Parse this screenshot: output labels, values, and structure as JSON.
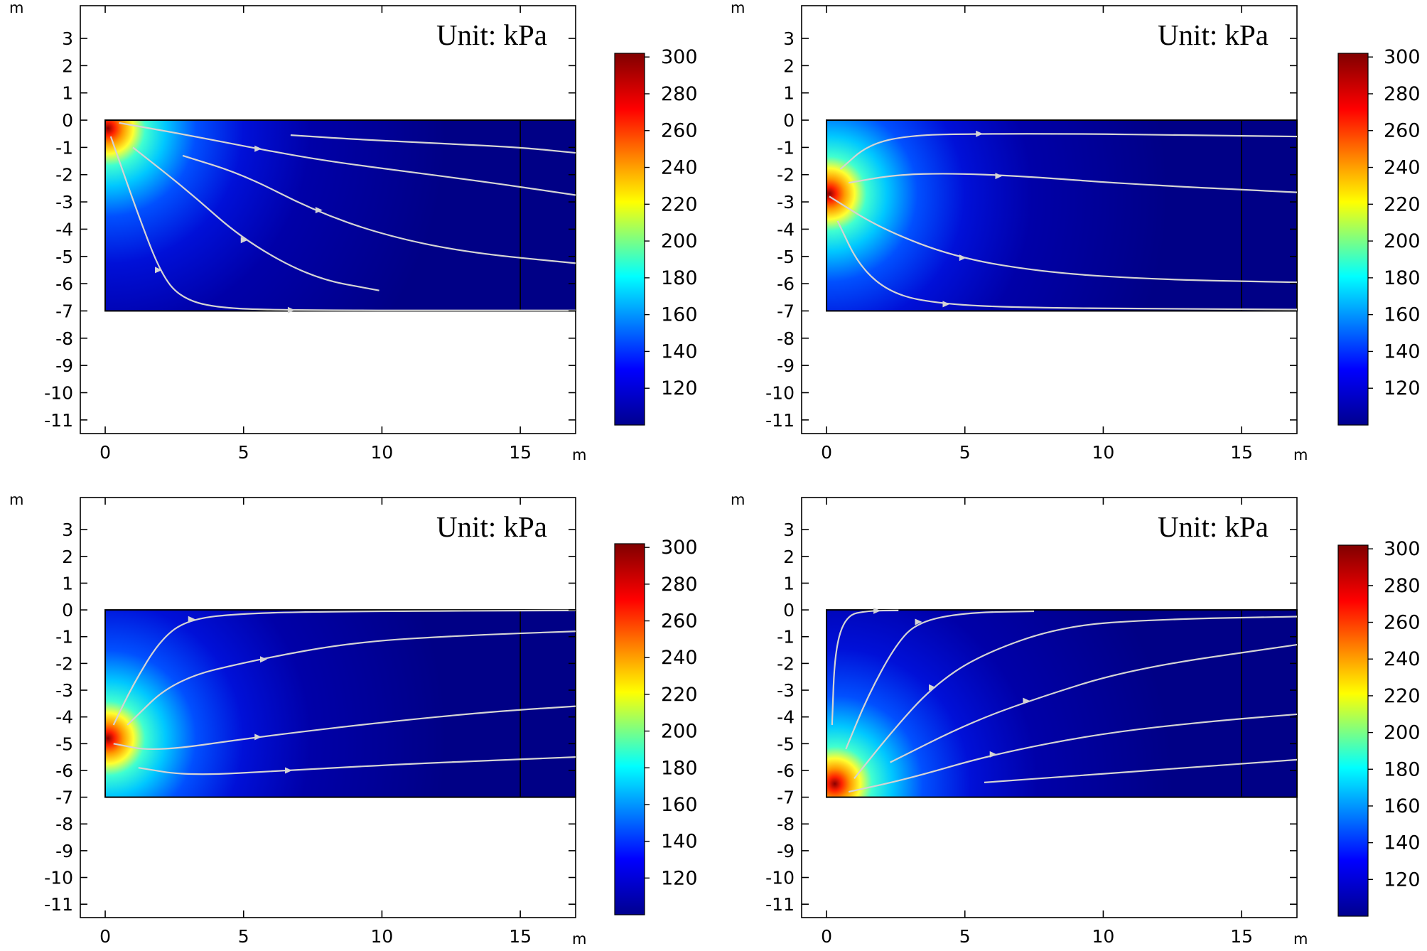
{
  "unit_note": "Unit: kPa",
  "colorbar": {
    "min": 100,
    "max": 302,
    "ticks": [
      120,
      140,
      160,
      180,
      200,
      220,
      240,
      260,
      280,
      300
    ],
    "colormap": "rainbow",
    "stops": [
      "#00008f",
      "#0000ff",
      "#00ffff",
      "#ffff00",
      "#ff0000",
      "#800000"
    ]
  },
  "chart_data": [
    {
      "type": "heatmap",
      "panel": "top-left",
      "xlabel": "m",
      "ylabel": "m",
      "xlim": [
        -0.9,
        17
      ],
      "ylim": [
        -11.5,
        4.2
      ],
      "xticks": [
        0,
        5,
        10,
        15
      ],
      "yticks": [
        3,
        2,
        1,
        0,
        -1,
        -2,
        -3,
        -4,
        -5,
        -6,
        -7,
        -8,
        -9,
        -10,
        -11
      ],
      "domain": {
        "x": [
          0,
          17
        ],
        "y": [
          -7,
          0
        ]
      },
      "divider_x": 15,
      "source": {
        "x": 0.1,
        "y": -0.3
      },
      "streamlines": [
        [
          [
            0.5,
            -0.1
          ],
          [
            3,
            -0.55
          ],
          [
            5.5,
            -1.05
          ],
          [
            8,
            -1.5
          ],
          [
            11,
            -1.9
          ],
          [
            14,
            -2.3
          ],
          [
            17,
            -2.75
          ]
        ],
        [
          [
            6.7,
            -0.55
          ],
          [
            9,
            -0.7
          ],
          [
            12,
            -0.85
          ],
          [
            15,
            -1.0
          ],
          [
            17,
            -1.2
          ]
        ],
        [
          [
            2.8,
            -1.3
          ],
          [
            5,
            -2.0
          ],
          [
            7.5,
            -3.3
          ],
          [
            10,
            -4.2
          ],
          [
            13,
            -4.85
          ],
          [
            17,
            -5.25
          ]
        ],
        [
          [
            1.0,
            -1.0
          ],
          [
            3,
            -2.6
          ],
          [
            5,
            -4.4
          ],
          [
            7.5,
            -5.8
          ],
          [
            9.9,
            -6.25
          ]
        ],
        [
          [
            0.2,
            -0.6
          ],
          [
            1.2,
            -3.5
          ],
          [
            2,
            -5.6
          ],
          [
            2.7,
            -6.5
          ],
          [
            4,
            -6.9
          ],
          [
            7,
            -6.98
          ],
          [
            17,
            -6.98
          ]
        ]
      ],
      "arrows": [
        [
          5.5,
          -1.05
        ],
        [
          7.7,
          -3.3
        ],
        [
          5,
          -4.4
        ],
        [
          1.9,
          -5.5
        ],
        [
          6.7,
          -6.97
        ]
      ]
    },
    {
      "type": "heatmap",
      "panel": "top-right",
      "xlabel": "m",
      "ylabel": "m",
      "xlim": [
        -0.9,
        17
      ],
      "ylim": [
        -11.5,
        4.2
      ],
      "xticks": [
        0,
        5,
        10,
        15
      ],
      "yticks": [
        3,
        2,
        1,
        0,
        -1,
        -2,
        -3,
        -4,
        -5,
        -6,
        -7,
        -8,
        -9,
        -10,
        -11
      ],
      "domain": {
        "x": [
          0,
          17
        ],
        "y": [
          -7,
          0
        ]
      },
      "divider_x": 15,
      "source": {
        "x": 0.1,
        "y": -2.7
      },
      "streamlines": [
        [
          [
            0.5,
            -1.8
          ],
          [
            1.5,
            -0.9
          ],
          [
            3,
            -0.55
          ],
          [
            5.5,
            -0.5
          ],
          [
            9,
            -0.5
          ],
          [
            13,
            -0.55
          ],
          [
            17,
            -0.6
          ]
        ],
        [
          [
            0.8,
            -2.3
          ],
          [
            2.5,
            -2.0
          ],
          [
            4.5,
            -1.95
          ],
          [
            7,
            -2.05
          ],
          [
            11,
            -2.35
          ],
          [
            17,
            -2.65
          ]
        ],
        [
          [
            0.1,
            -2.8
          ],
          [
            2,
            -4.0
          ],
          [
            4.7,
            -5.05
          ],
          [
            8,
            -5.6
          ],
          [
            12,
            -5.85
          ],
          [
            17,
            -5.95
          ]
        ],
        [
          [
            0.4,
            -3.7
          ],
          [
            1.2,
            -5.4
          ],
          [
            2.4,
            -6.4
          ],
          [
            4.2,
            -6.75
          ],
          [
            7,
            -6.88
          ],
          [
            12,
            -6.92
          ],
          [
            17,
            -6.95
          ]
        ]
      ],
      "arrows": [
        [
          5.5,
          -0.5
        ],
        [
          6.2,
          -2.05
        ],
        [
          4.9,
          -5.05
        ],
        [
          4.3,
          -6.75
        ]
      ]
    },
    {
      "type": "heatmap",
      "panel": "bottom-left",
      "xlabel": "m",
      "ylabel": "m",
      "xlim": [
        -0.9,
        17
      ],
      "ylim": [
        -11.5,
        4.2
      ],
      "xticks": [
        0,
        5,
        10,
        15
      ],
      "yticks": [
        3,
        2,
        1,
        0,
        -1,
        -2,
        -3,
        -4,
        -5,
        -6,
        -7,
        -8,
        -9,
        -10,
        -11
      ],
      "domain": {
        "x": [
          0,
          17
        ],
        "y": [
          -7,
          0
        ]
      },
      "divider_x": 15,
      "source": {
        "x": 0.1,
        "y": -4.8
      },
      "streamlines": [
        [
          [
            0.3,
            -4.3
          ],
          [
            1,
            -2.8
          ],
          [
            2,
            -1.1
          ],
          [
            3,
            -0.35
          ],
          [
            5,
            -0.12
          ],
          [
            9,
            -0.05
          ],
          [
            17,
            -0.02
          ]
        ],
        [
          [
            0.8,
            -4.3
          ],
          [
            2.5,
            -2.6
          ],
          [
            5.5,
            -1.85
          ],
          [
            9,
            -1.2
          ],
          [
            13,
            -0.95
          ],
          [
            17,
            -0.8
          ]
        ],
        [
          [
            0.3,
            -5.0
          ],
          [
            1.8,
            -5.3
          ],
          [
            5.5,
            -4.75
          ],
          [
            10,
            -4.2
          ],
          [
            14,
            -3.8
          ],
          [
            17,
            -3.6
          ]
        ],
        [
          [
            1.2,
            -5.9
          ],
          [
            3,
            -6.2
          ],
          [
            6.6,
            -6.0
          ],
          [
            11,
            -5.75
          ],
          [
            17,
            -5.5
          ]
        ]
      ],
      "arrows": [
        [
          3.1,
          -0.35
        ],
        [
          5.7,
          -1.85
        ],
        [
          5.5,
          -4.75
        ],
        [
          6.6,
          -6.0
        ]
      ]
    },
    {
      "type": "heatmap",
      "panel": "bottom-right",
      "xlabel": "m",
      "ylabel": "m",
      "xlim": [
        -0.9,
        17
      ],
      "ylim": [
        -11.5,
        4.2
      ],
      "xticks": [
        0,
        5,
        10,
        15
      ],
      "yticks": [
        3,
        2,
        1,
        0,
        -1,
        -2,
        -3,
        -4,
        -5,
        -6,
        -7,
        -8,
        -9,
        -10,
        -11
      ],
      "domain": {
        "x": [
          0,
          17
        ],
        "y": [
          -7,
          0
        ]
      },
      "divider_x": 15,
      "source": {
        "x": 0.3,
        "y": -6.5
      },
      "streamlines": [
        [
          [
            0.2,
            -4.3
          ],
          [
            0.3,
            -1.5
          ],
          [
            0.7,
            -0.2
          ],
          [
            1.5,
            -0.03
          ],
          [
            2.6,
            -0.02
          ]
        ],
        [
          [
            0.7,
            -5.2
          ],
          [
            1.5,
            -3.2
          ],
          [
            2.5,
            -1.3
          ],
          [
            3.3,
            -0.45
          ],
          [
            5,
            -0.1
          ],
          [
            7.5,
            -0.05
          ]
        ],
        [
          [
            1.0,
            -6.3
          ],
          [
            2.4,
            -4.5
          ],
          [
            3.8,
            -2.9
          ],
          [
            5.5,
            -1.7
          ],
          [
            8.5,
            -0.6
          ],
          [
            12,
            -0.35
          ],
          [
            17,
            -0.25
          ]
        ],
        [
          [
            2.3,
            -5.7
          ],
          [
            5,
            -4.3
          ],
          [
            7.3,
            -3.4
          ],
          [
            11,
            -2.2
          ],
          [
            17,
            -1.3
          ]
        ],
        [
          [
            0.8,
            -6.8
          ],
          [
            3,
            -6.3
          ],
          [
            6,
            -5.4
          ],
          [
            10,
            -4.6
          ],
          [
            14,
            -4.15
          ],
          [
            17,
            -3.9
          ]
        ],
        [
          [
            5.7,
            -6.45
          ],
          [
            9,
            -6.2
          ],
          [
            13,
            -5.9
          ],
          [
            17,
            -5.6
          ]
        ]
      ],
      "arrows": [
        [
          1.8,
          -0.03
        ],
        [
          3.3,
          -0.45
        ],
        [
          3.8,
          -2.9
        ],
        [
          7.2,
          -3.4
        ],
        [
          6,
          -5.4
        ]
      ]
    }
  ]
}
